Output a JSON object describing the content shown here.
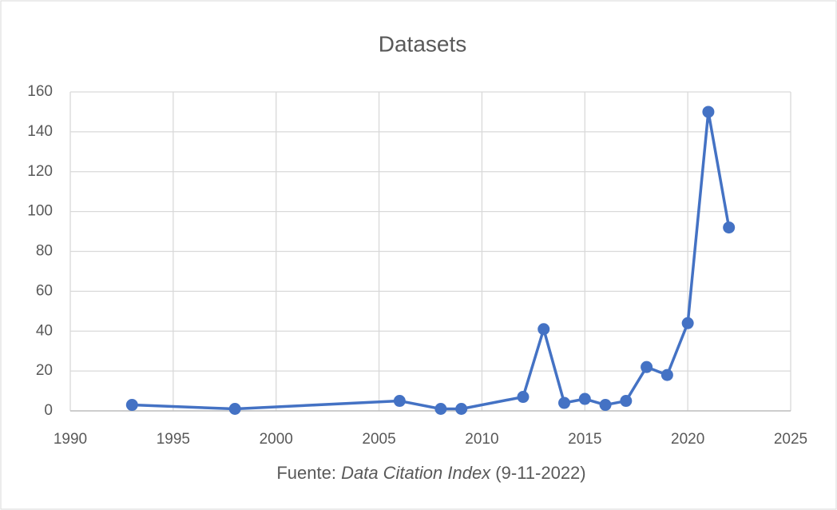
{
  "chart_data": {
    "type": "line",
    "title": "Datasets",
    "xlabel_parts": [
      "Fuente: ",
      "Data Citation Index",
      " (9-11-2022)"
    ],
    "x": [
      1993,
      1998,
      2006,
      2008,
      2009,
      2012,
      2013,
      2014,
      2015,
      2016,
      2017,
      2018,
      2019,
      2020,
      2021,
      2022
    ],
    "series": [
      {
        "name": "Datasets",
        "color": "#4472c4",
        "values": [
          3,
          1,
          5,
          1,
          1,
          7,
          41,
          4,
          6,
          3,
          5,
          22,
          18,
          44,
          150,
          92
        ]
      }
    ],
    "xlim": [
      1990,
      2025
    ],
    "xticks": [
      1990,
      1995,
      2000,
      2005,
      2010,
      2015,
      2020,
      2025
    ],
    "ylim": [
      0,
      160
    ],
    "yticks": [
      0,
      20,
      40,
      60,
      80,
      100,
      120,
      140,
      160
    ],
    "grid": true
  }
}
